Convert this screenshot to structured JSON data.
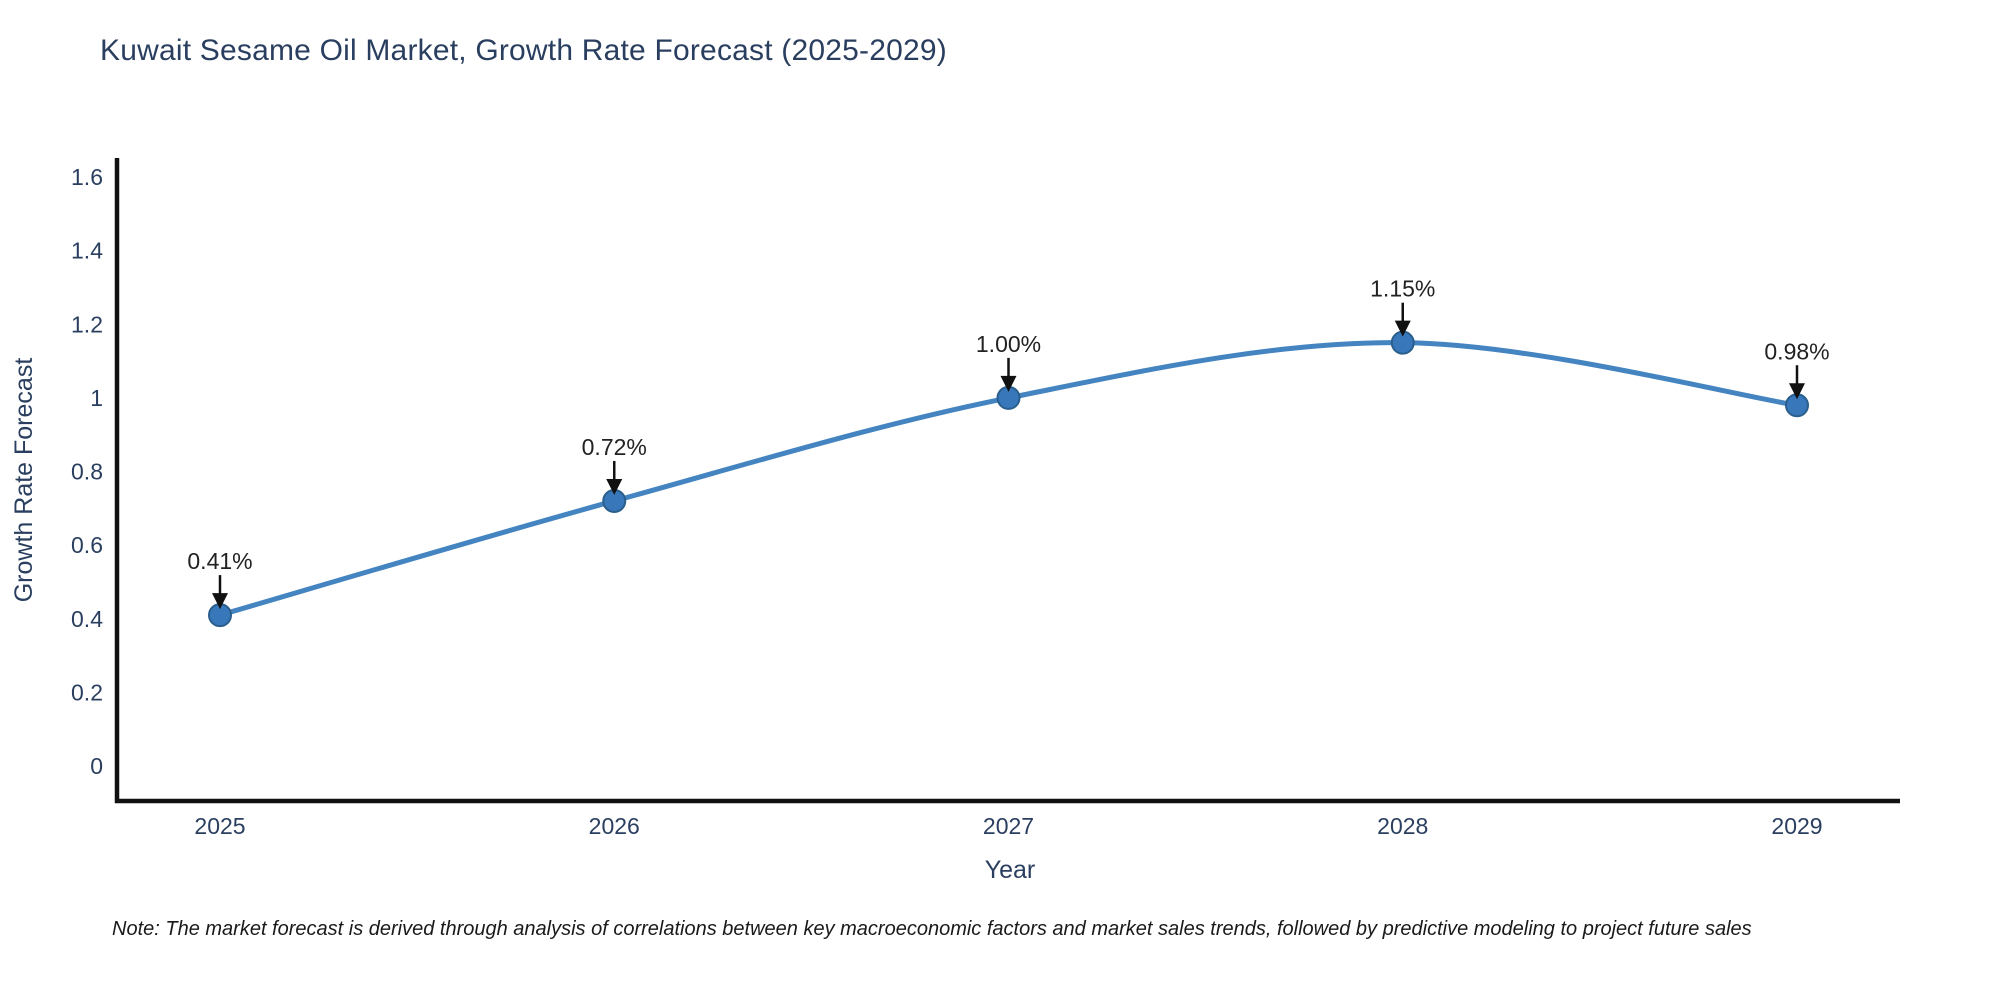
{
  "chart_data": {
    "type": "line",
    "line_shape": "spline",
    "title": "Kuwait Sesame Oil Market, Growth Rate Forecast (2025-2029)",
    "xlabel": "Year",
    "ylabel": "Growth Rate Forecast",
    "categories": [
      "2025",
      "2026",
      "2027",
      "2028",
      "2029"
    ],
    "values": [
      0.41,
      0.72,
      1.0,
      1.15,
      0.98
    ],
    "point_labels": [
      "0.41%",
      "0.72%",
      "1.00%",
      "1.15%",
      "0.98%"
    ],
    "ylim": [
      0,
      1.6
    ],
    "ytick_labels": [
      "0",
      "0.2",
      "0.4",
      "0.6",
      "0.8",
      "1",
      "1.2",
      "1.4",
      "1.6"
    ],
    "grid": false,
    "legend": "none",
    "colors": {
      "line": "#4484c0",
      "marker_fill": "#3878ba",
      "marker_edge": "#2a5e8c",
      "axis": "#111111",
      "tick_label": "#2a3f5f",
      "axis_title": "#2a3f5f",
      "chart_title": "#2a3f5f",
      "annotation_text": "#222222",
      "annotation_arrow": "#111111"
    }
  },
  "note": {
    "text": "Note: The market forecast is derived through analysis of correlations between key macroeconomic factors and market sales trends, followed by predictive modeling to project future sales"
  }
}
